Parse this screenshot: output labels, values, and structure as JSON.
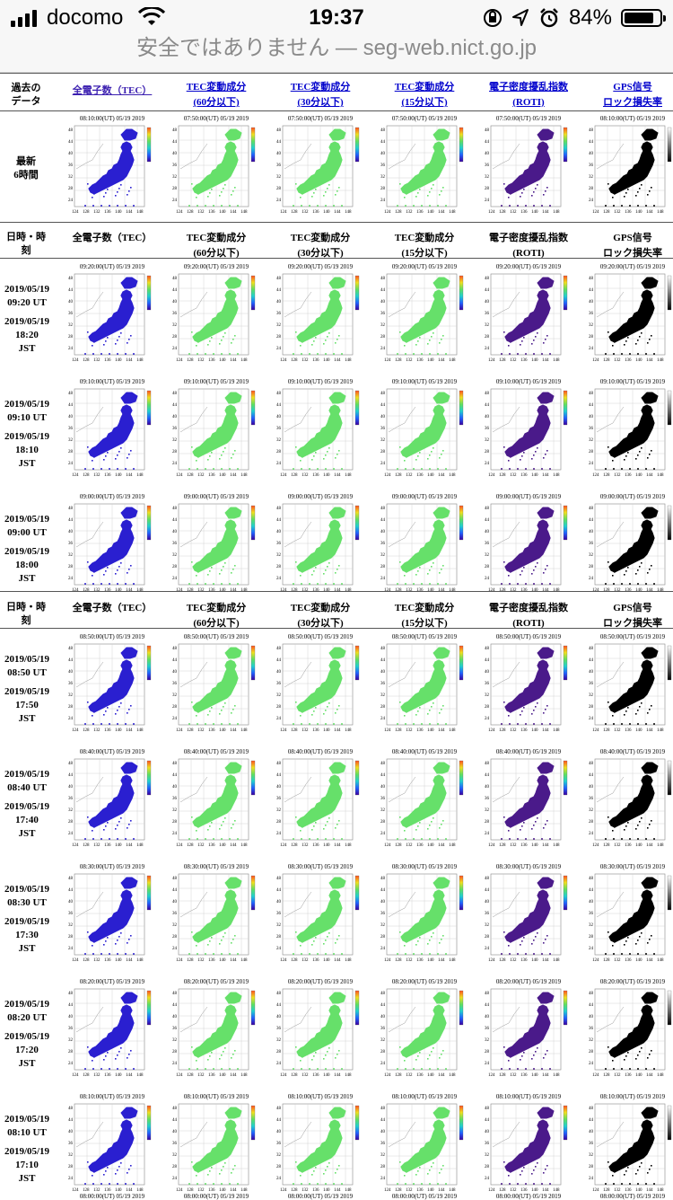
{
  "status_bar": {
    "carrier": "docomo",
    "time": "19:37",
    "battery": "84%",
    "battery_level": 0.84
  },
  "url_bar": {
    "text": "安全ではありません — seg-web.nict.go.jp"
  },
  "past_label": "過去の\nデータ",
  "latest_label": "最新\n6時間",
  "columns_link": [
    {
      "label": "全電子数（TEC）",
      "map": "tec"
    },
    {
      "label": "TEC変動成分\n(60分以下)",
      "map": "dtec"
    },
    {
      "label": "TEC変動成分\n(30分以下)",
      "map": "dtec"
    },
    {
      "label": "TEC変動成分\n(15分以下)",
      "map": "dtec"
    },
    {
      "label": "電子密度擾乱指数\n(ROTI)",
      "map": "roti"
    },
    {
      "label": "GPS信号\nロック損失率",
      "map": "lol"
    }
  ],
  "latest_times": [
    "08:10:00(UT) 05/19 2019",
    "07:50:00(UT) 05/19 2019",
    "07:50:00(UT) 05/19 2019",
    "07:50:00(UT) 05/19 2019",
    "07:50:00(UT) 05/19 2019",
    "08:10:00(UT) 05/19 2019"
  ],
  "table_header_label": "日時・時\n刻",
  "columns": [
    "全電子数（TEC）",
    "TEC変動成分\n(60分以下)",
    "TEC変動成分\n(30分以下)",
    "TEC変動成分\n(15分以下)",
    "電子密度擾乱指数\n(ROTI)",
    "GPS信号\nロック損失率"
  ],
  "section1": [
    {
      "date": "2019/05/19",
      "ut": "09:20 UT",
      "jst_date": "2019/05/19",
      "jst": "18:20\nJST",
      "stamp": "09:20:00(UT) 05/19 2019"
    },
    {
      "date": "2019/05/19",
      "ut": "09:10 UT",
      "jst_date": "2019/05/19",
      "jst": "18:10\nJST",
      "stamp": "09:10:00(UT) 05/19 2019"
    },
    {
      "date": "2019/05/19",
      "ut": "09:00 UT",
      "jst_date": "2019/05/19",
      "jst": "18:00\nJST",
      "stamp": "09:00:00(UT) 05/19 2019"
    }
  ],
  "section2": [
    {
      "date": "2019/05/19",
      "ut": "08:50 UT",
      "jst_date": "2019/05/19",
      "jst": "17:50\nJST",
      "stamp": "08:50:00(UT) 05/19 2019"
    },
    {
      "date": "2019/05/19",
      "ut": "08:40 UT",
      "jst_date": "2019/05/19",
      "jst": "17:40\nJST",
      "stamp": "08:40:00(UT) 05/19 2019"
    },
    {
      "date": "2019/05/19",
      "ut": "08:30 UT",
      "jst_date": "2019/05/19",
      "jst": "17:30\nJST",
      "stamp": "08:30:00(UT) 05/19 2019"
    },
    {
      "date": "2019/05/19",
      "ut": "08:20 UT",
      "jst_date": "2019/05/19",
      "jst": "17:20\nJST",
      "stamp": "08:20:00(UT) 05/19 2019"
    },
    {
      "date": "2019/05/19",
      "ut": "08:10 UT",
      "jst_date": "2019/05/19",
      "jst": "17:10\nJST",
      "stamp": "08:10:00(UT) 05/19 2019"
    }
  ],
  "last_row_stamp": "08:00:00(UT) 05/19 2019",
  "map_colors": {
    "tec": "#2a1fd0",
    "dtec": "#66e06a",
    "roti": "#4a1a8a",
    "lol": "#000000"
  },
  "map_axes": {
    "lat": [
      "48",
      "44",
      "40",
      "36",
      "32",
      "28",
      "24"
    ],
    "lon": [
      "124",
      "128",
      "132",
      "136",
      "140",
      "144",
      "148"
    ]
  }
}
